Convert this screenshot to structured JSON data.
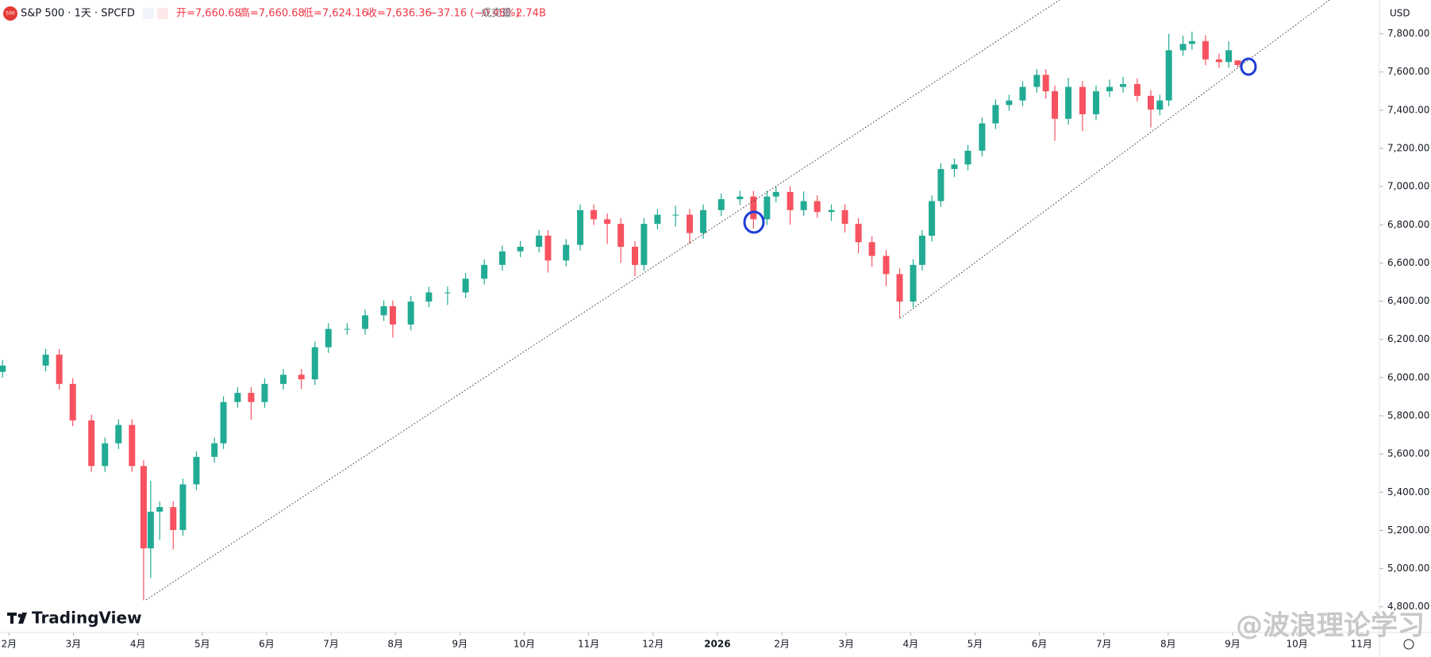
{
  "ui": {
    "symbol": "S&P 500 · 1天 · SPCFD",
    "logo": "500",
    "ohlc": [
      "开=7,660.68",
      "高=7,660.68",
      "低=7,624.16",
      "收=7,636.36",
      "−37.16 (−0.48%)"
    ],
    "volume_label": "成交量",
    "volume": "2.74B",
    "currency": "USD",
    "brand": "TradingView",
    "watermark": "@波浪理论学习"
  },
  "chart_data": {
    "type": "candlestick",
    "up_color": "#22ab94",
    "down_color": "#f7525f",
    "grid": false,
    "x": [
      -0.1,
      0.57,
      0.78,
      0.99,
      1.28,
      1.49,
      1.7,
      1.91,
      2.09,
      2.2,
      2.34,
      2.55,
      2.7,
      2.91,
      3.19,
      3.33,
      3.55,
      3.76,
      3.97,
      4.26,
      4.54,
      4.75,
      4.96,
      5.25,
      5.53,
      5.82,
      5.96,
      6.24,
      6.52,
      6.81,
      7.09,
      7.38,
      7.66,
      7.94,
      8.23,
      8.37,
      8.65,
      8.87,
      9.08,
      9.29,
      9.5,
      9.72,
      9.86,
      10.07,
      10.35,
      10.57,
      10.78,
      11.06,
      11.35,
      11.56,
      11.77,
      11.91,
      12.13,
      12.34,
      12.55,
      12.77,
      12.98,
      13.19,
      13.4,
      13.62,
      13.83,
      14.04,
      14.18,
      14.33,
      14.47,
      14.68,
      14.89,
      15.11,
      15.32,
      15.53,
      15.74,
      15.96,
      16.1,
      16.24,
      16.45,
      16.67,
      16.88,
      17.09,
      17.3,
      17.52,
      17.73,
      17.87,
      18.01,
      18.23,
      18.37,
      18.58,
      18.79,
      18.94,
      19.08
    ],
    "open": [
      6030,
      6063,
      6120,
      5967,
      5776,
      5537,
      5656,
      5752,
      5537,
      5106,
      5298,
      5322,
      5202,
      5441,
      5585,
      5656,
      5872,
      5920,
      5872,
      5967,
      6015,
      5991,
      6159,
      6255,
      6255,
      6326,
      6374,
      6278,
      6398,
      6446,
      6446,
      6518,
      6590,
      6661,
      6685,
      6743,
      6613,
      6695,
      6877,
      6829,
      6805,
      6685,
      6590,
      6805,
      6853,
      6853,
      6757,
      6877,
      6934,
      6948,
      6829,
      6948,
      6972,
      6877,
      6924,
      6867,
      6877,
      6805,
      6709,
      6637,
      6542,
      6398,
      6590,
      6743,
      6924,
      7092,
      7116,
      7188,
      7331,
      7427,
      7451,
      7522,
      7585,
      7499,
      7355,
      7522,
      7379,
      7499,
      7522,
      7537,
      7475,
      7403,
      7451,
      7714,
      7747,
      7762,
      7666,
      7652,
      7660.68
    ],
    "high": [
      6093,
      6150,
      6150,
      5997,
      5806,
      5686,
      5782,
      5782,
      5567,
      5460,
      5352,
      5352,
      5471,
      5615,
      5686,
      5902,
      5950,
      5950,
      5997,
      6045,
      6045,
      6189,
      6285,
      6285,
      6356,
      6404,
      6404,
      6428,
      6476,
      6476,
      6548,
      6620,
      6691,
      6715,
      6773,
      6773,
      6725,
      6907,
      6907,
      6859,
      6835,
      6715,
      6835,
      6883,
      6900,
      6883,
      6907,
      6964,
      6978,
      6978,
      6978,
      7002,
      7002,
      6975,
      6954,
      6907,
      6907,
      6835,
      6739,
      6667,
      6572,
      6620,
      6773,
      6954,
      7122,
      7146,
      7218,
      7361,
      7457,
      7481,
      7552,
      7615,
      7615,
      7529,
      7570,
      7552,
      7529,
      7560,
      7575,
      7567,
      7505,
      7481,
      7800,
      7790,
      7812,
      7792,
      7696,
      7760,
      7660.68
    ],
    "low": [
      6000,
      6033,
      5937,
      5746,
      5507,
      5507,
      5626,
      5507,
      4834,
      4950,
      5150,
      5100,
      5172,
      5411,
      5555,
      5626,
      5842,
      5780,
      5842,
      5937,
      5940,
      5961,
      6129,
      6225,
      6225,
      6296,
      6210,
      6248,
      6368,
      6380,
      6416,
      6488,
      6560,
      6631,
      6655,
      6550,
      6583,
      6665,
      6799,
      6700,
      6600,
      6530,
      6560,
      6775,
      6790,
      6700,
      6727,
      6847,
      6904,
      6780,
      6799,
      6918,
      6800,
      6847,
      6837,
      6820,
      6760,
      6650,
      6580,
      6480,
      6312,
      6368,
      6560,
      6713,
      6894,
      7050,
      7086,
      7158,
      7301,
      7397,
      7421,
      7492,
      7460,
      7240,
      7325,
      7290,
      7349,
      7469,
      7492,
      7445,
      7310,
      7373,
      7421,
      7684,
      7717,
      7636,
      7622,
      7622,
      7624.16
    ],
    "close": [
      6063,
      6120,
      5967,
      5776,
      5537,
      5656,
      5752,
      5537,
      5106,
      5298,
      5322,
      5202,
      5441,
      5585,
      5656,
      5872,
      5920,
      5872,
      5967,
      6015,
      5991,
      6159,
      6255,
      6255,
      6326,
      6374,
      6278,
      6398,
      6446,
      6446,
      6518,
      6590,
      6661,
      6685,
      6743,
      6613,
      6695,
      6877,
      6829,
      6805,
      6685,
      6590,
      6805,
      6853,
      6853,
      6757,
      6877,
      6934,
      6948,
      6829,
      6948,
      6972,
      6877,
      6924,
      6867,
      6877,
      6805,
      6709,
      6637,
      6542,
      6398,
      6590,
      6743,
      6924,
      7092,
      7116,
      7188,
      7331,
      7427,
      7451,
      7522,
      7585,
      7499,
      7355,
      7522,
      7379,
      7499,
      7522,
      7537,
      7475,
      7403,
      7451,
      7714,
      7747,
      7762,
      7666,
      7652,
      7714,
      7636.36
    ],
    "xlim": [
      -0.14,
      21.28
    ],
    "xticks": [
      {
        "value": 0,
        "label": "2月"
      },
      {
        "value": 1,
        "label": "3月"
      },
      {
        "value": 2,
        "label": "4月"
      },
      {
        "value": 3,
        "label": "5月"
      },
      {
        "value": 4,
        "label": "6月"
      },
      {
        "value": 5,
        "label": "7月"
      },
      {
        "value": 6,
        "label": "8月"
      },
      {
        "value": 7,
        "label": "9月"
      },
      {
        "value": 8,
        "label": "10月"
      },
      {
        "value": 9,
        "label": "11月"
      },
      {
        "value": 10,
        "label": "12月"
      },
      {
        "value": 11,
        "label": "2026"
      },
      {
        "value": 12,
        "label": "2月"
      },
      {
        "value": 13,
        "label": "3月"
      },
      {
        "value": 14,
        "label": "4月"
      },
      {
        "value": 15,
        "label": "5月"
      },
      {
        "value": 16,
        "label": "6月"
      },
      {
        "value": 17,
        "label": "7月"
      },
      {
        "value": 18,
        "label": "8月"
      },
      {
        "value": 19,
        "label": "9月"
      },
      {
        "value": 20,
        "label": "10月"
      },
      {
        "value": 21,
        "label": "11月"
      }
    ],
    "ylim": [
      4666,
      7977
    ],
    "yticks": [
      {
        "value": 4800,
        "label": "4,800.00"
      },
      {
        "value": 5000,
        "label": "5,000.00"
      },
      {
        "value": 5200,
        "label": "5,200.00"
      },
      {
        "value": 5400,
        "label": "5,400.00"
      },
      {
        "value": 5600,
        "label": "5,600.00"
      },
      {
        "value": 5800,
        "label": "5,800.00"
      },
      {
        "value": 6000,
        "label": "6,000.00"
      },
      {
        "value": 6200,
        "label": "6,200.00"
      },
      {
        "value": 6400,
        "label": "6,400.00"
      },
      {
        "value": 6600,
        "label": "6,600.00"
      },
      {
        "value": 6800,
        "label": "6,800.00"
      },
      {
        "value": 7000,
        "label": "7,000.00"
      },
      {
        "value": 7200,
        "label": "7,200.00"
      },
      {
        "value": 7400,
        "label": "7,400.00"
      },
      {
        "value": 7600,
        "label": "7,600.00"
      },
      {
        "value": 7800,
        "label": "7,800.00"
      }
    ]
  }
}
